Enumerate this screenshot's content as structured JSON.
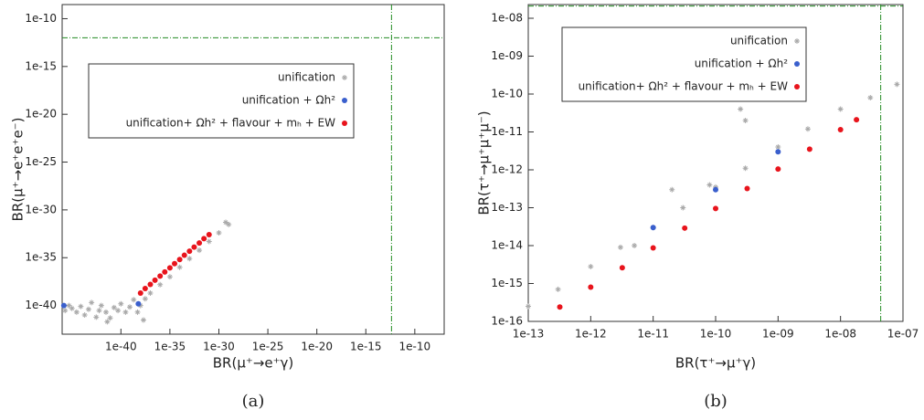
{
  "chart_data": [
    {
      "type": "scatter",
      "caption": "(a)",
      "xlabel": "BR(μ⁺→e⁺γ)",
      "ylabel": "BR(μ⁺→e⁺e⁺e⁻)",
      "log_x": true,
      "log_y": true,
      "legend": "upper left",
      "xlim": [
        1e-46,
        1e-07
      ],
      "ylim": [
        1e-43,
        3e-09
      ],
      "xticks": [
        1e-40,
        1e-35,
        1e-30,
        1e-25,
        1e-20,
        1e-15,
        1e-10
      ],
      "yticks": [
        1e-40,
        1e-35,
        1e-30,
        1e-25,
        1e-20,
        1e-15,
        1e-10
      ],
      "bounds": {
        "x": 4.2e-13,
        "y": 1e-12,
        "color": "#228b22"
      },
      "series": [
        {
          "name": "unification",
          "color": "#aaaaaa",
          "marker": "star",
          "x": [
            2e-46,
            5e-46,
            1e-45,
            3e-45,
            8e-45,
            2e-44,
            5e-44,
            1e-43,
            3e-43,
            6e-43,
            1e-42,
            3e-42,
            8e-42,
            2e-41,
            5e-41,
            1e-40,
            3e-40,
            8e-40,
            2e-39,
            5e-39,
            1e-38,
            3e-38,
            1e-37,
            1e-36,
            1e-35,
            1e-34,
            1e-33,
            1e-32,
            1e-31,
            1e-30,
            1e-29,
            5e-30,
            2e-38,
            4e-42
          ],
          "y": [
            3e-41,
            1e-40,
            5e-41,
            2e-41,
            8e-41,
            1e-41,
            4e-41,
            2e-40,
            6e-42,
            3e-41,
            1e-40,
            2e-41,
            5e-42,
            6e-41,
            3e-41,
            1.5e-40,
            2e-41,
            7e-41,
            4e-40,
            2e-41,
            1e-40,
            5e-40,
            2e-39,
            1.5e-38,
            1e-37,
            1e-36,
            8e-36,
            6e-35,
            5e-34,
            4e-33,
            3e-32,
            5e-32,
            3e-42,
            2e-42
          ]
        },
        {
          "name": "unification + Ωh²",
          "color": "#3a5fcd",
          "marker": "circle",
          "x": [
            1.5e-46,
            6e-39
          ],
          "y": [
            1e-40,
            1.5e-40
          ]
        },
        {
          "name": "unification+ Ωh² + flavour + mₕ + EW",
          "color": "#e8141c",
          "marker": "circle",
          "x": [
            1e-38,
            3e-38,
            1e-37,
            3e-37,
            1e-36,
            3e-36,
            1e-35,
            3e-35,
            1e-34,
            3e-34,
            1e-33,
            3e-33,
            1e-32,
            3e-32,
            1e-31
          ],
          "y": [
            2e-39,
            6e-39,
            1.6e-38,
            4.4e-38,
            1.2e-37,
            3.2e-37,
            8.7e-37,
            2.4e-36,
            6.5e-36,
            1.8e-35,
            4.8e-35,
            1.3e-34,
            3.5e-34,
            9.8e-34,
            2.6e-33
          ]
        }
      ]
    },
    {
      "type": "scatter",
      "caption": "(b)",
      "xlabel": "BR(τ⁺→μ⁺γ)",
      "ylabel": "BR(τ⁺→μ⁺μ⁺μ⁻)",
      "log_x": true,
      "log_y": true,
      "legend": "upper left",
      "xlim": [
        1e-13,
        1e-07
      ],
      "ylim": [
        1e-16,
        2.3e-08
      ],
      "xticks": [
        1e-13,
        1e-12,
        1e-11,
        1e-10,
        {
          "value": 1e-09,
          "label": "1e-09"
        },
        {
          "value": 1e-08,
          "label": "1e-08"
        },
        {
          "value": 1e-07,
          "label": "1e-07"
        }
      ],
      "yticks": [
        1e-16,
        1e-15,
        1e-14,
        1e-13,
        1e-12,
        1e-11,
        1e-10,
        {
          "value": 1e-09,
          "label": "1e-09"
        },
        {
          "value": 1e-08,
          "label": "1e-08"
        }
      ],
      "bounds": {
        "x": 4.4e-08,
        "y": 2.1e-08,
        "color": "#228b22"
      },
      "series": [
        {
          "name": "unification",
          "color": "#aaaaaa",
          "marker": "star",
          "x": [
            1e-13,
            3e-13,
            1e-12,
            3e-12,
            1e-11,
            3e-11,
            1e-10,
            3e-10,
            1e-09,
            3e-09,
            1e-08,
            3e-08,
            8e-08,
            2.5e-10,
            3e-10,
            8e-11,
            5e-12,
            2e-11
          ],
          "y": [
            2.5e-16,
            7e-16,
            2.8e-15,
            9e-15,
            3e-14,
            1e-13,
            3.5e-13,
            1.1e-12,
            4e-12,
            1.2e-11,
            4e-11,
            8e-11,
            1.8e-10,
            4e-11,
            2e-11,
            4e-13,
            1e-14,
            3e-13
          ]
        },
        {
          "name": "unification + Ωh²",
          "color": "#3a5fcd",
          "marker": "circle",
          "x": [
            1e-11,
            1e-10,
            1e-09
          ],
          "y": [
            3e-14,
            3e-13,
            3e-12
          ]
        },
        {
          "name": "unification+ Ωh² + flavour + mₕ + EW",
          "color": "#e8141c",
          "marker": "circle",
          "x": [
            3.2e-13,
            1e-12,
            3.2e-12,
            1e-11,
            3.2e-11,
            1e-10,
            3.2e-10,
            1e-09,
            3.2e-09,
            1e-08,
            1.8e-08
          ],
          "y": [
            2.4e-16,
            8e-16,
            2.6e-15,
            8.7e-15,
            2.9e-14,
            9.5e-14,
            3.2e-13,
            1.05e-12,
            3.5e-12,
            1.15e-11,
            2.1e-11
          ]
        }
      ]
    }
  ]
}
